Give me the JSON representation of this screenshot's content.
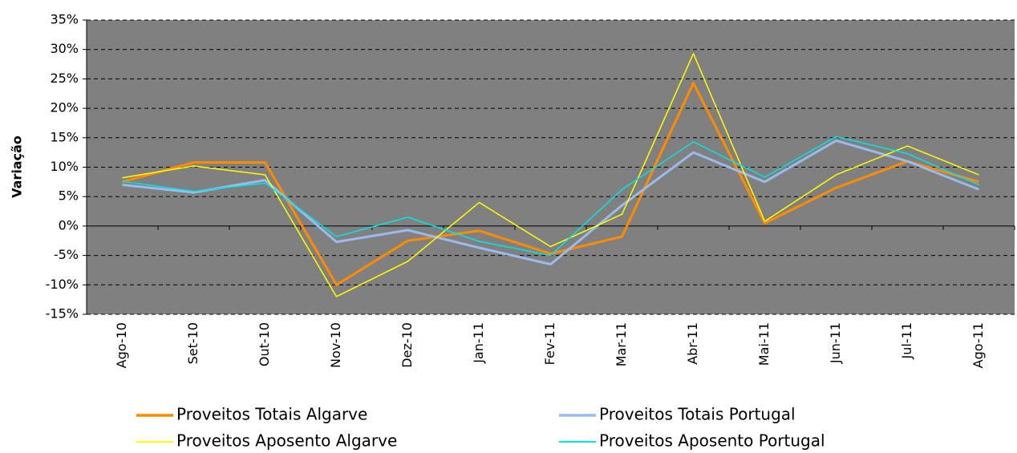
{
  "chart_data": {
    "type": "line",
    "y_label": "Variação",
    "categories": [
      "Ago-10",
      "Set-10",
      "Out-10",
      "Nov-10",
      "Dez-10",
      "Jan-11",
      "Fev-11",
      "Mar-11",
      "Abr-11",
      "Mai-11",
      "Jun-11",
      "Jul-11",
      "Ago-11"
    ],
    "series": [
      {
        "name": "Proveitos Totais Algarve",
        "color": "#ff8c00",
        "width": 3,
        "values": [
          7.5,
          10.8,
          10.8,
          -10,
          -2.5,
          -0.8,
          -4.7,
          -1.8,
          24.3,
          0.5,
          6.5,
          11,
          7.5
        ]
      },
      {
        "name": "Proveitos Totais Portugal",
        "color": "#99bbee",
        "width": 3,
        "values": [
          7,
          5.7,
          7.8,
          -2.7,
          -0.7,
          -3.7,
          -6.5,
          3.5,
          12.5,
          7.5,
          14.5,
          11,
          6.2
        ]
      },
      {
        "name": "Proveitos Aposento Algarve",
        "color": "#ffff00",
        "width": 1.5,
        "values": [
          8.2,
          10.2,
          8.7,
          -12,
          -6,
          4,
          -3.5,
          2,
          29.3,
          0.8,
          8.7,
          13.6,
          8.7
        ]
      },
      {
        "name": "Proveitos Aposento Portugal",
        "color": "#00e5e5",
        "width": 1.5,
        "values": [
          7.6,
          5.9,
          7.3,
          -1.8,
          1.5,
          -2.6,
          -5,
          6.2,
          14.3,
          8.3,
          15.2,
          12.3,
          7
        ]
      }
    ],
    "ylim": [
      -15,
      35
    ],
    "yticks": [
      {
        "value": -15,
        "label": "-15%"
      },
      {
        "value": -10,
        "label": "-10%"
      },
      {
        "value": -5,
        "label": "-5%"
      },
      {
        "value": 0,
        "label": "0%"
      },
      {
        "value": 5,
        "label": "5%"
      },
      {
        "value": 10,
        "label": "10%"
      },
      {
        "value": 15,
        "label": "15%"
      },
      {
        "value": 20,
        "label": "20%"
      },
      {
        "value": 25,
        "label": "25%"
      },
      {
        "value": 30,
        "label": "30%"
      },
      {
        "value": 35,
        "label": "35%"
      }
    ],
    "grid": true,
    "plot_background": "#808080",
    "legend": "bottom"
  }
}
